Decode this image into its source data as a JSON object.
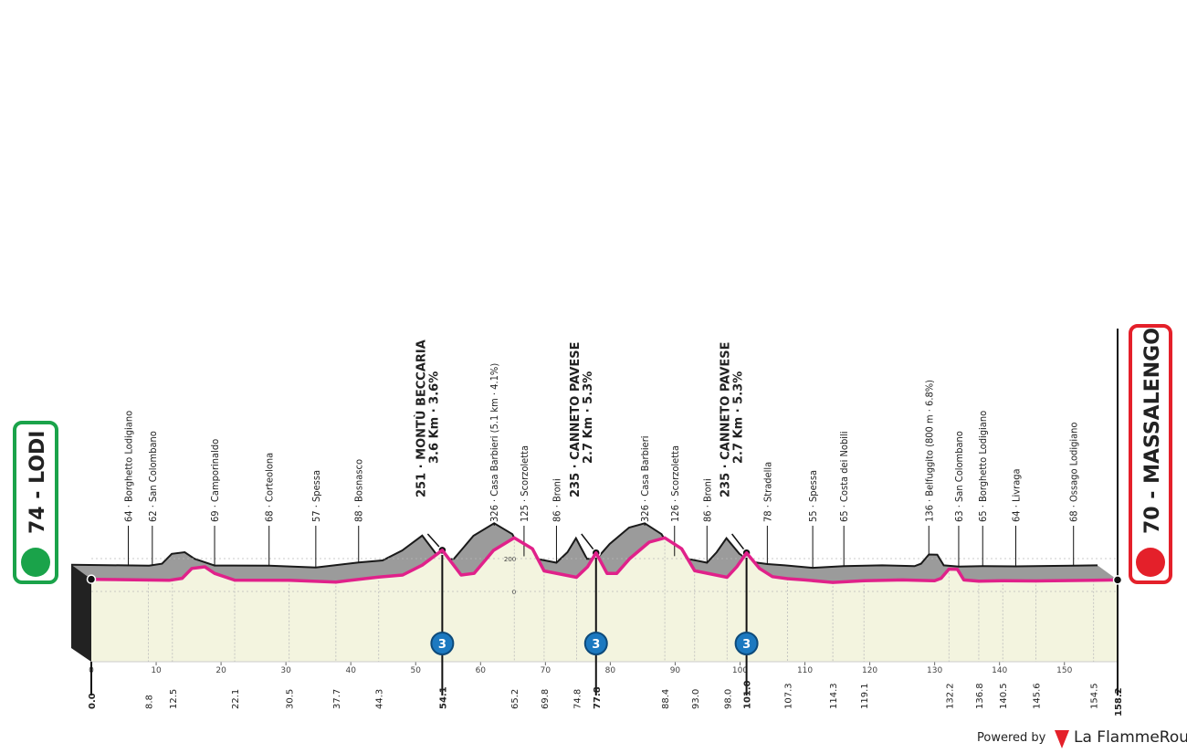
{
  "chart_data": {
    "type": "profile",
    "start": "74 - LODI",
    "finish": "70 - MASSALENGO",
    "x": [
      0,
      8,
      12,
      14,
      15.5,
      17.5,
      19,
      22.1,
      30.5,
      37.7,
      44.3,
      48,
      51,
      54.1,
      57,
      59,
      62,
      65.2,
      68,
      69.8,
      74.8,
      76.5,
      77.8,
      79.5,
      81,
      83,
      86,
      88.4,
      91,
      93,
      98,
      99.5,
      101,
      103,
      105,
      107.3,
      110,
      114.3,
      119.1,
      125,
      130,
      131,
      132.2,
      133.5,
      134.5,
      136.8,
      140.5,
      145.6,
      150,
      154.5,
      158.2
    ],
    "values": [
      74,
      70,
      68,
      80,
      140,
      150,
      110,
      69,
      68,
      57,
      88,
      100,
      160,
      251,
      100,
      110,
      250,
      326,
      260,
      125,
      86,
      150,
      235,
      110,
      110,
      200,
      300,
      326,
      260,
      126,
      86,
      150,
      235,
      140,
      90,
      78,
      70,
      55,
      65,
      70,
      65,
      80,
      136,
      135,
      70,
      63,
      65,
      64,
      66,
      68,
      70
    ],
    "xlim": [
      0,
      158.2
    ],
    "xticks": [
      0,
      10,
      20,
      30,
      40,
      50,
      60,
      70,
      80,
      90,
      100,
      110,
      120,
      130,
      140,
      150
    ],
    "yticks": [
      0,
      200
    ],
    "start_km": {
      "value": 0,
      "label": "0.0"
    },
    "finish_km": 158.2,
    "waypoints": [
      {
        "km": 8.8,
        "text": "64 · Borghetto Lodigiano"
      },
      {
        "km": 12.5,
        "text": "62 · San Colombano"
      },
      {
        "km": 22.1,
        "text": "69 · Camporinaldo"
      },
      {
        "km": 30.5,
        "text": "68 · Corteolona"
      },
      {
        "km": 37.7,
        "text": "57 · Spessa"
      },
      {
        "km": 44.3,
        "text": "88 · Bosnasco"
      },
      {
        "km": 54.1,
        "text": "251 · MONTÙ BECCARIA",
        "detail": "3.6 Km · 3.6%",
        "category": 3
      },
      {
        "km": 65.2,
        "text": "326 · Casa Barbieri (5.1 km · 4.1%)"
      },
      {
        "km": 69.8,
        "text": "125 · Scorzoletta"
      },
      {
        "km": 74.8,
        "text": "86 · Broni"
      },
      {
        "km": 77.8,
        "text": "235 · CANNETO PAVESE",
        "detail": "2.7 Km · 5.3%",
        "category": 3
      },
      {
        "km": 88.4,
        "text": "326 · Casa Barbieri"
      },
      {
        "km": {
          "value": 93,
          "label": "93.0"
        },
        "text": "126 · Scorzoletta"
      },
      {
        "km": {
          "value": 98,
          "label": "98.0"
        },
        "text": "86 · Broni"
      },
      {
        "km": {
          "value": 101,
          "label": "101.0"
        },
        "text": "235 · CANNETO PAVESE",
        "detail": "2.7 Km · 5.3%",
        "category": 3
      },
      {
        "km": 107.3,
        "text": "78 · Stradella"
      },
      {
        "km": 114.3,
        "text": "55 · Spessa"
      },
      {
        "km": 119.1,
        "text": "65 · Costa dei Nobili"
      },
      {
        "km": 132.2,
        "text": "136 · Belfuggito (800 m · 6.8%)"
      },
      {
        "km": 136.8,
        "text": "63 · San Colombano"
      },
      {
        "km": 140.5,
        "text": "65 · Borghetto Lodigiano"
      },
      {
        "km": 145.6,
        "text": "64 · Livraga"
      },
      {
        "km": 154.5,
        "text": "68 · Ossago Lodigiano"
      }
    ],
    "line_color": "#e0218a"
  },
  "footer": {
    "powered": "Powered by",
    "brand": "La FlammeRouge"
  }
}
